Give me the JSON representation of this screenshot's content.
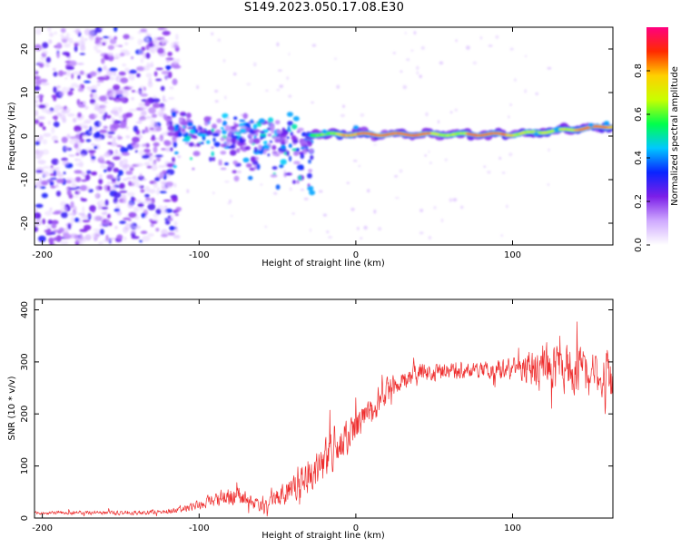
{
  "figure": {
    "title": "S149.2023.050.17.08.E30"
  },
  "chart_data": [
    {
      "type": "heatmap",
      "title": "S149.2023.050.17.08.E30",
      "xlabel": "Height of straight line (km)",
      "ylabel": "Frequency (Hz)",
      "xlim": [
        -205,
        164
      ],
      "ylim": [
        -25,
        25
      ],
      "x_ticks": [
        -200,
        -100,
        0,
        100
      ],
      "y_ticks": [
        -20,
        -10,
        0,
        10,
        20
      ],
      "colorbar": {
        "label": "Normalized spectral amplitude",
        "range": [
          0,
          1
        ],
        "ticks": [
          0.0,
          0.2,
          0.4,
          0.6,
          0.8
        ],
        "colors": [
          "#ffffff",
          "#cfa9ff",
          "#7c1fe8",
          "#0a24ff",
          "#00c8ff",
          "#00ff4c",
          "#c8ff00",
          "#ffd000",
          "#ff2a00",
          "#ff0080"
        ]
      },
      "regions": [
        {
          "name": "diffuse noise",
          "x_range": [
            -205,
            -115
          ],
          "freq_range": [
            -25,
            25
          ],
          "amplitude": 0.15
        },
        {
          "name": "scattered echoes",
          "x_range": [
            -115,
            -30
          ],
          "freq_range": [
            -15,
            8
          ],
          "amplitude": 0.3
        },
        {
          "name": "narrow line",
          "x_range": [
            -30,
            164
          ],
          "center_freq": 0.5,
          "amplitude": 0.9
        }
      ]
    },
    {
      "type": "line",
      "xlabel": "Height of straight line (km)",
      "ylabel": "SNR (10 * v/v)",
      "xlim": [
        -205,
        164
      ],
      "ylim": [
        0,
        420
      ],
      "x_ticks": [
        -200,
        -100,
        0,
        100
      ],
      "y_ticks": [
        0,
        100,
        200,
        300,
        400
      ],
      "series": [
        {
          "name": "SNR",
          "color": "#ee2c2c",
          "trend_x": [
            -205,
            -150,
            -120,
            -100,
            -80,
            -60,
            -40,
            -20,
            0,
            10,
            20,
            40,
            60,
            80,
            100,
            120,
            140,
            164
          ],
          "trend_y": [
            10,
            10,
            12,
            25,
            45,
            25,
            55,
            110,
            175,
            200,
            245,
            280,
            280,
            285,
            285,
            290,
            280,
            270
          ],
          "spread_x": [
            -205,
            -120,
            -100,
            -80,
            -60,
            -40,
            -20,
            0,
            20,
            40,
            80,
            100,
            120,
            164
          ],
          "spread_y": [
            4,
            6,
            12,
            25,
            15,
            35,
            55,
            40,
            30,
            22,
            20,
            30,
            60,
            70
          ]
        }
      ]
    }
  ]
}
